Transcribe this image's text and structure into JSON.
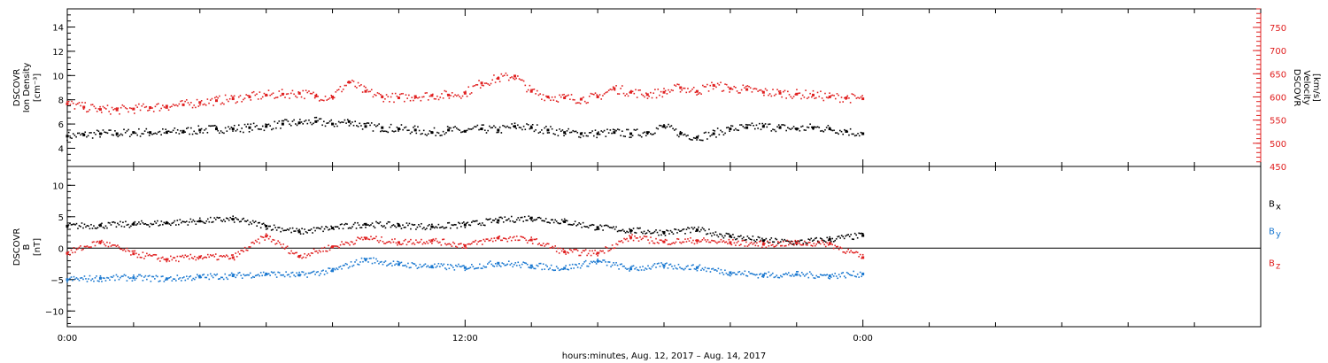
{
  "chart_data": [
    {
      "type": "scatter",
      "panel": "top",
      "left_axis": {
        "label_lines": [
          "DSCOVR",
          "Ion Density",
          "[cm⁻³]"
        ],
        "ylim": [
          2.5,
          15.5
        ],
        "ticks": [
          4,
          6,
          8,
          10,
          12,
          14
        ],
        "tick_labels": [
          "4",
          "6",
          "8",
          "10",
          "12",
          "14"
        ],
        "color": "#000000"
      },
      "right_axis": {
        "label_lines": [
          "DSCOVR",
          "Velocity",
          "[km/s]"
        ],
        "ylim": [
          450,
          790
        ],
        "ticks": [
          450,
          500,
          550,
          600,
          650,
          700,
          750
        ],
        "tick_labels": [
          "450",
          "500",
          "550",
          "600",
          "650",
          "700",
          "750"
        ],
        "color": "#e02020"
      },
      "series": [
        {
          "color": "#000000",
          "axis": "left",
          "points": [
            [
              0,
              5.0
            ],
            [
              0.5,
              5.1
            ],
            [
              1,
              5.2
            ],
            [
              1.5,
              5.2
            ],
            [
              2,
              5.3
            ],
            [
              2.5,
              5.3
            ],
            [
              3,
              5.3
            ],
            [
              3.5,
              5.4
            ],
            [
              4,
              5.5
            ],
            [
              4.5,
              5.6
            ],
            [
              5,
              5.6
            ],
            [
              5.5,
              5.7
            ],
            [
              6,
              5.8
            ],
            [
              6.5,
              6.0
            ],
            [
              7,
              6.1
            ],
            [
              7.5,
              6.2
            ],
            [
              8,
              6.0
            ],
            [
              8.5,
              6.2
            ],
            [
              9,
              5.8
            ],
            [
              9.5,
              5.7
            ],
            [
              10,
              5.6
            ],
            [
              10.5,
              5.5
            ],
            [
              11,
              5.3
            ],
            [
              11.5,
              5.5
            ],
            [
              12,
              5.4
            ],
            [
              12.5,
              5.6
            ],
            [
              13,
              5.5
            ],
            [
              13.5,
              5.8
            ],
            [
              14,
              5.7
            ],
            [
              14.5,
              5.5
            ],
            [
              15,
              5.3
            ],
            [
              15.5,
              5.2
            ],
            [
              16,
              5.2
            ],
            [
              16.5,
              5.3
            ],
            [
              17,
              5.2
            ],
            [
              17.5,
              5.3
            ],
            [
              18,
              5.8
            ],
            [
              18.5,
              5.2
            ],
            [
              19,
              4.9
            ],
            [
              19.5,
              5.2
            ],
            [
              20,
              5.6
            ],
            [
              20.5,
              5.7
            ],
            [
              21,
              5.8
            ],
            [
              21.5,
              5.7
            ],
            [
              22,
              5.6
            ],
            [
              22.5,
              5.7
            ],
            [
              23,
              5.6
            ],
            [
              23.5,
              5.4
            ],
            [
              24,
              5.2
            ]
          ]
        },
        {
          "color": "#e02020",
          "axis": "right",
          "points": [
            [
              0,
              585
            ],
            [
              0.5,
              578
            ],
            [
              1,
              573
            ],
            [
              1.5,
              572
            ],
            [
              2,
              574
            ],
            [
              2.5,
              577
            ],
            [
              3,
              580
            ],
            [
              3.5,
              583
            ],
            [
              4,
              588
            ],
            [
              4.5,
              592
            ],
            [
              5,
              596
            ],
            [
              5.5,
              600
            ],
            [
              6,
              604
            ],
            [
              6.5,
              606
            ],
            [
              7,
              608
            ],
            [
              7.5,
              602
            ],
            [
              8,
              600
            ],
            [
              8.5,
              632
            ],
            [
              9,
              612
            ],
            [
              9.5,
              600
            ],
            [
              10,
              598
            ],
            [
              10.5,
              601
            ],
            [
              11,
              603
            ],
            [
              11.5,
              604
            ],
            [
              12,
              608
            ],
            [
              12.5,
              630
            ],
            [
              13,
              640
            ],
            [
              13.5,
              645
            ],
            [
              14,
              612
            ],
            [
              14.5,
              600
            ],
            [
              15,
              598
            ],
            [
              15.5,
              595
            ],
            [
              16,
              600
            ],
            [
              16.5,
              618
            ],
            [
              17,
              610
            ],
            [
              17.5,
              605
            ],
            [
              18,
              610
            ],
            [
              18.5,
              620
            ],
            [
              19,
              612
            ],
            [
              19.5,
              625
            ],
            [
              20,
              618
            ],
            [
              20.5,
              616
            ],
            [
              21,
              610
            ],
            [
              21.5,
              608
            ],
            [
              22,
              606
            ],
            [
              22.5,
              604
            ],
            [
              23,
              600
            ],
            [
              23.5,
              598
            ],
            [
              24,
              596
            ]
          ]
        }
      ]
    },
    {
      "type": "line",
      "panel": "bottom",
      "left_axis": {
        "label_lines": [
          "DSCOVR",
          "B",
          "[nT]"
        ],
        "ylim": [
          -12.5,
          13
        ],
        "ticks": [
          -10,
          -5,
          0,
          5,
          10
        ],
        "tick_labels": [
          "−10",
          "−5",
          "0",
          "5",
          "10"
        ]
      },
      "zero_line": true,
      "series": [
        {
          "name": "Bx",
          "legend_main": "B",
          "legend_sub": "x",
          "color": "#000000",
          "points": [
            [
              0,
              3.5
            ],
            [
              1,
              3.6
            ],
            [
              2,
              3.8
            ],
            [
              3,
              4.0
            ],
            [
              4,
              4.3
            ],
            [
              5,
              4.6
            ],
            [
              6,
              3.5
            ],
            [
              7,
              2.6
            ],
            [
              8,
              3.2
            ],
            [
              9,
              3.8
            ],
            [
              10,
              3.6
            ],
            [
              11,
              3.4
            ],
            [
              12,
              3.7
            ],
            [
              13,
              4.4
            ],
            [
              14,
              4.8
            ],
            [
              15,
              4.2
            ],
            [
              16,
              3.3
            ],
            [
              17,
              2.8
            ],
            [
              18,
              2.5
            ],
            [
              19,
              2.9
            ],
            [
              20,
              1.9
            ],
            [
              21,
              1.2
            ],
            [
              22,
              0.9
            ],
            [
              23,
              1.4
            ],
            [
              24,
              2.0
            ]
          ]
        },
        {
          "name": "By",
          "legend_main": "B",
          "legend_sub": "y",
          "color": "#1a78d0",
          "points": [
            [
              0,
              -5.0
            ],
            [
              1,
              -4.8
            ],
            [
              2,
              -4.7
            ],
            [
              3,
              -4.9
            ],
            [
              4,
              -4.6
            ],
            [
              5,
              -4.4
            ],
            [
              6,
              -4.1
            ],
            [
              7,
              -4.3
            ],
            [
              8,
              -3.6
            ],
            [
              9,
              -1.8
            ],
            [
              10,
              -2.6
            ],
            [
              11,
              -2.9
            ],
            [
              12,
              -3.1
            ],
            [
              13,
              -2.4
            ],
            [
              14,
              -2.8
            ],
            [
              15,
              -3.2
            ],
            [
              16,
              -2.1
            ],
            [
              17,
              -3.3
            ],
            [
              18,
              -2.8
            ],
            [
              19,
              -3.1
            ],
            [
              20,
              -3.9
            ],
            [
              21,
              -4.3
            ],
            [
              22,
              -4.2
            ],
            [
              23,
              -4.4
            ],
            [
              24,
              -4.1
            ]
          ]
        },
        {
          "name": "Bz",
          "legend_main": "B",
          "legend_sub": "z",
          "color": "#e02020",
          "points": [
            [
              0,
              -0.8
            ],
            [
              1,
              1.0
            ],
            [
              2,
              -0.9
            ],
            [
              3,
              -1.8
            ],
            [
              4,
              -1.4
            ],
            [
              5,
              -1.5
            ],
            [
              6,
              1.9
            ],
            [
              7,
              -1.3
            ],
            [
              8,
              0.2
            ],
            [
              9,
              1.6
            ],
            [
              10,
              0.9
            ],
            [
              11,
              1.2
            ],
            [
              12,
              0.4
            ],
            [
              13,
              1.6
            ],
            [
              14,
              1.3
            ],
            [
              15,
              -0.6
            ],
            [
              16,
              -0.8
            ],
            [
              17,
              1.7
            ],
            [
              18,
              1.0
            ],
            [
              19,
              1.2
            ],
            [
              20,
              0.9
            ],
            [
              21,
              0.6
            ],
            [
              22,
              0.8
            ],
            [
              23,
              0.7
            ],
            [
              24,
              -1.5
            ]
          ]
        }
      ]
    }
  ],
  "x_axis": {
    "xlim": [
      0,
      36
    ],
    "data_end_hours": 24,
    "major_ticks": [
      0,
      12,
      24
    ],
    "tick_labels": [
      "0:00",
      "12:00",
      "0:00"
    ],
    "minor_step_hours": 2,
    "label": "hours:minutes, Aug. 12, 2017 – Aug. 14, 2017"
  }
}
